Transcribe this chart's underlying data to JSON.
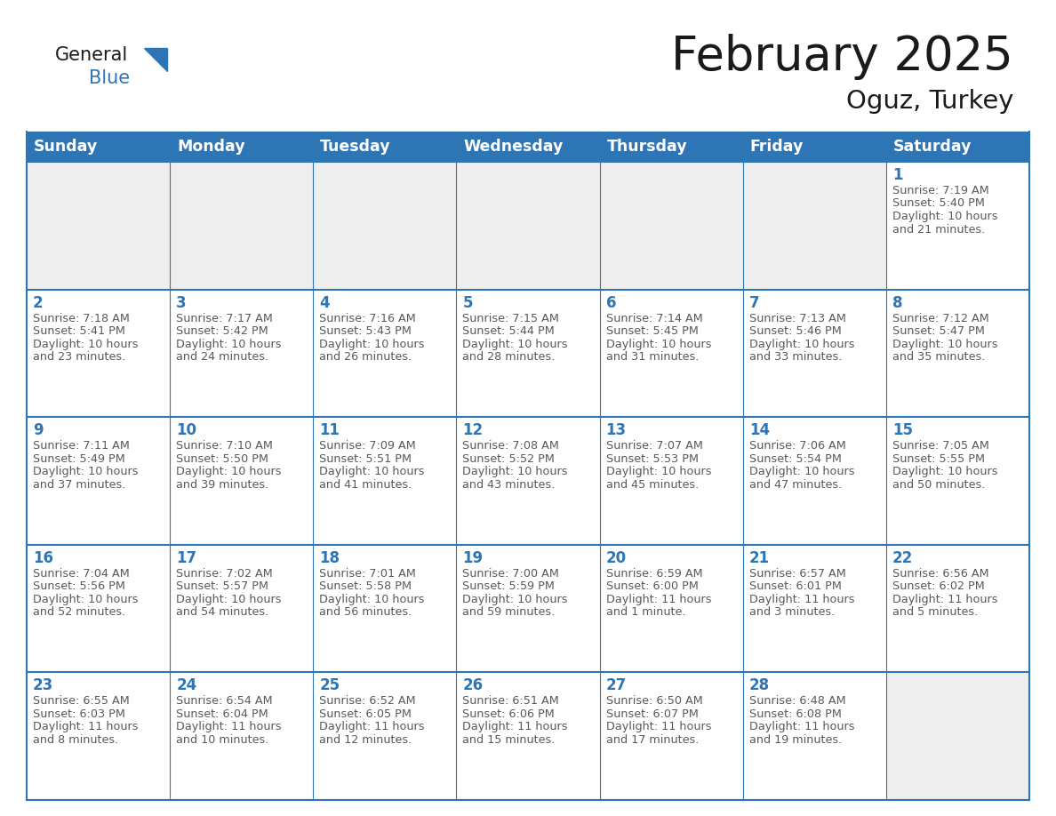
{
  "title": "February 2025",
  "subtitle": "Oguz, Turkey",
  "header_bg_color": "#2E75B6",
  "header_text_color": "#FFFFFF",
  "cell_bg_color": "#FFFFFF",
  "empty_cell_bg_color": "#EEEEEE",
  "cell_border_color": "#2E75B6",
  "day_number_color": "#2E75B6",
  "info_text_color": "#595959",
  "background_color": "#FFFFFF",
  "days_of_week": [
    "Sunday",
    "Monday",
    "Tuesday",
    "Wednesday",
    "Thursday",
    "Friday",
    "Saturday"
  ],
  "calendar_data": [
    [
      null,
      null,
      null,
      null,
      null,
      null,
      {
        "day": "1",
        "sunrise": "7:19 AM",
        "sunset": "5:40 PM",
        "daylight_line1": "Daylight: 10 hours",
        "daylight_line2": "and 21 minutes."
      }
    ],
    [
      {
        "day": "2",
        "sunrise": "7:18 AM",
        "sunset": "5:41 PM",
        "daylight_line1": "Daylight: 10 hours",
        "daylight_line2": "and 23 minutes."
      },
      {
        "day": "3",
        "sunrise": "7:17 AM",
        "sunset": "5:42 PM",
        "daylight_line1": "Daylight: 10 hours",
        "daylight_line2": "and 24 minutes."
      },
      {
        "day": "4",
        "sunrise": "7:16 AM",
        "sunset": "5:43 PM",
        "daylight_line1": "Daylight: 10 hours",
        "daylight_line2": "and 26 minutes."
      },
      {
        "day": "5",
        "sunrise": "7:15 AM",
        "sunset": "5:44 PM",
        "daylight_line1": "Daylight: 10 hours",
        "daylight_line2": "and 28 minutes."
      },
      {
        "day": "6",
        "sunrise": "7:14 AM",
        "sunset": "5:45 PM",
        "daylight_line1": "Daylight: 10 hours",
        "daylight_line2": "and 31 minutes."
      },
      {
        "day": "7",
        "sunrise": "7:13 AM",
        "sunset": "5:46 PM",
        "daylight_line1": "Daylight: 10 hours",
        "daylight_line2": "and 33 minutes."
      },
      {
        "day": "8",
        "sunrise": "7:12 AM",
        "sunset": "5:47 PM",
        "daylight_line1": "Daylight: 10 hours",
        "daylight_line2": "and 35 minutes."
      }
    ],
    [
      {
        "day": "9",
        "sunrise": "7:11 AM",
        "sunset": "5:49 PM",
        "daylight_line1": "Daylight: 10 hours",
        "daylight_line2": "and 37 minutes."
      },
      {
        "day": "10",
        "sunrise": "7:10 AM",
        "sunset": "5:50 PM",
        "daylight_line1": "Daylight: 10 hours",
        "daylight_line2": "and 39 minutes."
      },
      {
        "day": "11",
        "sunrise": "7:09 AM",
        "sunset": "5:51 PM",
        "daylight_line1": "Daylight: 10 hours",
        "daylight_line2": "and 41 minutes."
      },
      {
        "day": "12",
        "sunrise": "7:08 AM",
        "sunset": "5:52 PM",
        "daylight_line1": "Daylight: 10 hours",
        "daylight_line2": "and 43 minutes."
      },
      {
        "day": "13",
        "sunrise": "7:07 AM",
        "sunset": "5:53 PM",
        "daylight_line1": "Daylight: 10 hours",
        "daylight_line2": "and 45 minutes."
      },
      {
        "day": "14",
        "sunrise": "7:06 AM",
        "sunset": "5:54 PM",
        "daylight_line1": "Daylight: 10 hours",
        "daylight_line2": "and 47 minutes."
      },
      {
        "day": "15",
        "sunrise": "7:05 AM",
        "sunset": "5:55 PM",
        "daylight_line1": "Daylight: 10 hours",
        "daylight_line2": "and 50 minutes."
      }
    ],
    [
      {
        "day": "16",
        "sunrise": "7:04 AM",
        "sunset": "5:56 PM",
        "daylight_line1": "Daylight: 10 hours",
        "daylight_line2": "and 52 minutes."
      },
      {
        "day": "17",
        "sunrise": "7:02 AM",
        "sunset": "5:57 PM",
        "daylight_line1": "Daylight: 10 hours",
        "daylight_line2": "and 54 minutes."
      },
      {
        "day": "18",
        "sunrise": "7:01 AM",
        "sunset": "5:58 PM",
        "daylight_line1": "Daylight: 10 hours",
        "daylight_line2": "and 56 minutes."
      },
      {
        "day": "19",
        "sunrise": "7:00 AM",
        "sunset": "5:59 PM",
        "daylight_line1": "Daylight: 10 hours",
        "daylight_line2": "and 59 minutes."
      },
      {
        "day": "20",
        "sunrise": "6:59 AM",
        "sunset": "6:00 PM",
        "daylight_line1": "Daylight: 11 hours",
        "daylight_line2": "and 1 minute."
      },
      {
        "day": "21",
        "sunrise": "6:57 AM",
        "sunset": "6:01 PM",
        "daylight_line1": "Daylight: 11 hours",
        "daylight_line2": "and 3 minutes."
      },
      {
        "day": "22",
        "sunrise": "6:56 AM",
        "sunset": "6:02 PM",
        "daylight_line1": "Daylight: 11 hours",
        "daylight_line2": "and 5 minutes."
      }
    ],
    [
      {
        "day": "23",
        "sunrise": "6:55 AM",
        "sunset": "6:03 PM",
        "daylight_line1": "Daylight: 11 hours",
        "daylight_line2": "and 8 minutes."
      },
      {
        "day": "24",
        "sunrise": "6:54 AM",
        "sunset": "6:04 PM",
        "daylight_line1": "Daylight: 11 hours",
        "daylight_line2": "and 10 minutes."
      },
      {
        "day": "25",
        "sunrise": "6:52 AM",
        "sunset": "6:05 PM",
        "daylight_line1": "Daylight: 11 hours",
        "daylight_line2": "and 12 minutes."
      },
      {
        "day": "26",
        "sunrise": "6:51 AM",
        "sunset": "6:06 PM",
        "daylight_line1": "Daylight: 11 hours",
        "daylight_line2": "and 15 minutes."
      },
      {
        "day": "27",
        "sunrise": "6:50 AM",
        "sunset": "6:07 PM",
        "daylight_line1": "Daylight: 11 hours",
        "daylight_line2": "and 17 minutes."
      },
      {
        "day": "28",
        "sunrise": "6:48 AM",
        "sunset": "6:08 PM",
        "daylight_line1": "Daylight: 11 hours",
        "daylight_line2": "and 19 minutes."
      },
      null
    ]
  ],
  "title_fontsize": 38,
  "subtitle_fontsize": 21,
  "header_fontsize": 12.5,
  "day_number_fontsize": 12,
  "info_fontsize": 9.2,
  "logo_general_fontsize": 15,
  "logo_blue_fontsize": 15
}
